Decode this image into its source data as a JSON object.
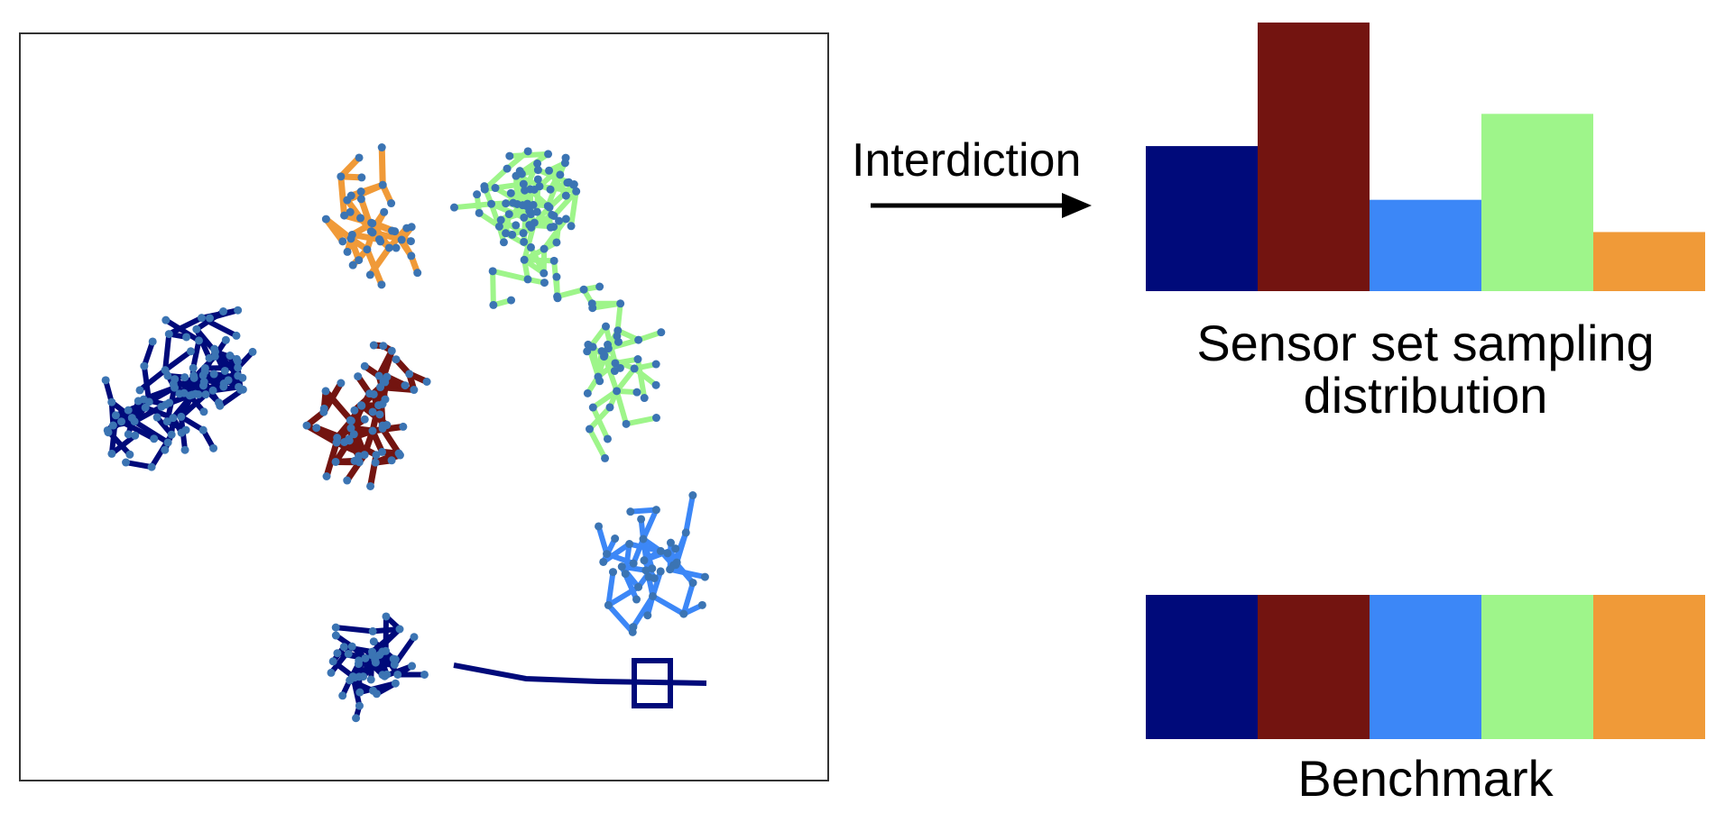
{
  "network": {
    "clusters": [
      {
        "name": "navy",
        "color": "#000a7a"
      },
      {
        "name": "maroon",
        "color": "#731410"
      },
      {
        "name": "blue",
        "color": "#3c87f7"
      },
      {
        "name": "green",
        "color": "#9ef58a"
      },
      {
        "name": "orange",
        "color": "#f09a38"
      }
    ],
    "node_color": "#3b74b3"
  },
  "arrow": {
    "label": "Interdiction"
  },
  "sampling": {
    "caption_line1": "Sensor set sampling",
    "caption_line2": "distribution"
  },
  "benchmark": {
    "caption": "Benchmark"
  },
  "chart_data": [
    {
      "type": "bar",
      "title": "",
      "xlabel": "",
      "ylabel": "",
      "ylim": [
        0,
        1
      ],
      "categories": [
        "navy",
        "maroon",
        "blue",
        "green",
        "orange"
      ],
      "colors": [
        "#000a7a",
        "#731410",
        "#3c87f7",
        "#9ef58a",
        "#f09a38"
      ],
      "values": [
        0.54,
        1.0,
        0.34,
        0.66,
        0.22
      ]
    },
    {
      "type": "bar",
      "title": "",
      "xlabel": "",
      "ylabel": "",
      "ylim": [
        0,
        1
      ],
      "categories": [
        "navy",
        "maroon",
        "blue",
        "green",
        "orange"
      ],
      "colors": [
        "#000a7a",
        "#731410",
        "#3c87f7",
        "#9ef58a",
        "#f09a38"
      ],
      "values": [
        1,
        1,
        1,
        1,
        1
      ]
    }
  ]
}
